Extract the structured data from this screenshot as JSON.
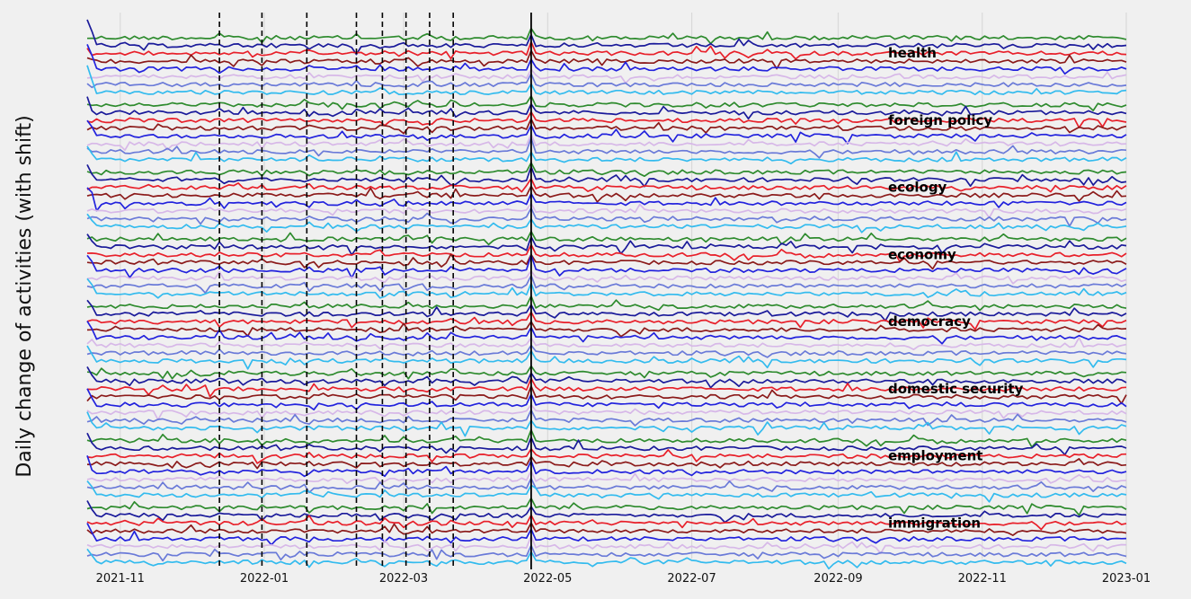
{
  "chart_data": {
    "type": "line",
    "ylabel": "Daily change of activities (with shift)",
    "xlabel": "",
    "title": "",
    "x_tick_labels": [
      "2021-11",
      "2022-01",
      "2022-03",
      "2022-05",
      "2022-07",
      "2022-09",
      "2022-11",
      "2023-01"
    ],
    "x_ticks": [
      "2021-11-01",
      "2022-01-01",
      "2022-03-01",
      "2022-05-01",
      "2022-07-01",
      "2022-09-01",
      "2022-11-01",
      "2023-01-01"
    ],
    "xlim": [
      "2021-10-18",
      "2023-01-01"
    ],
    "grid": true,
    "groups": [
      "health",
      "foreign policy",
      "ecology",
      "economy",
      "democracy",
      "domestic security",
      "employment",
      "immigration"
    ],
    "series_colors": [
      "#2e8b2e",
      "#1a1a9a",
      "#e8202a",
      "#8b1a1a",
      "#2222dd",
      "#d7b8e8",
      "#6a7ad8",
      "#33bbee"
    ],
    "vertical_events_dashed": [
      "2021-12-13",
      "2021-12-31",
      "2022-01-19",
      "2022-02-09",
      "2022-02-20",
      "2022-03-02",
      "2022-03-12",
      "2022-03-22"
    ],
    "vertical_event_solid": "2022-04-24"
  }
}
